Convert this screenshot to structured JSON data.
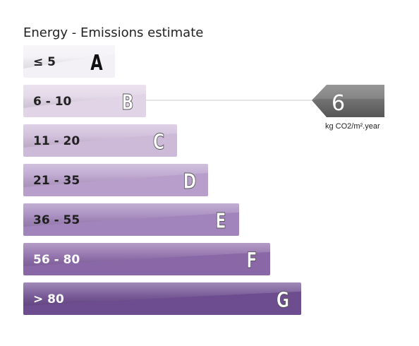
{
  "chart_data": {
    "type": "bar",
    "title": "Energy - Emissions estimate",
    "categories": [
      "A",
      "B",
      "C",
      "D",
      "E",
      "F",
      "G"
    ],
    "ranges": [
      "≤ 5",
      "6 - 10",
      "11 - 20",
      "21 - 35",
      "36 - 55",
      "56 - 80",
      "> 80"
    ],
    "colors": [
      "#f4f1f6",
      "#e0d4e6",
      "#cdb9d8",
      "#b89fcb",
      "#a184bb",
      "#8a67a6",
      "#6d4c8f"
    ],
    "indicator": {
      "value": "6",
      "unit": "kg CO2/m².year",
      "category": "B",
      "color": "#6e6e6e"
    }
  }
}
